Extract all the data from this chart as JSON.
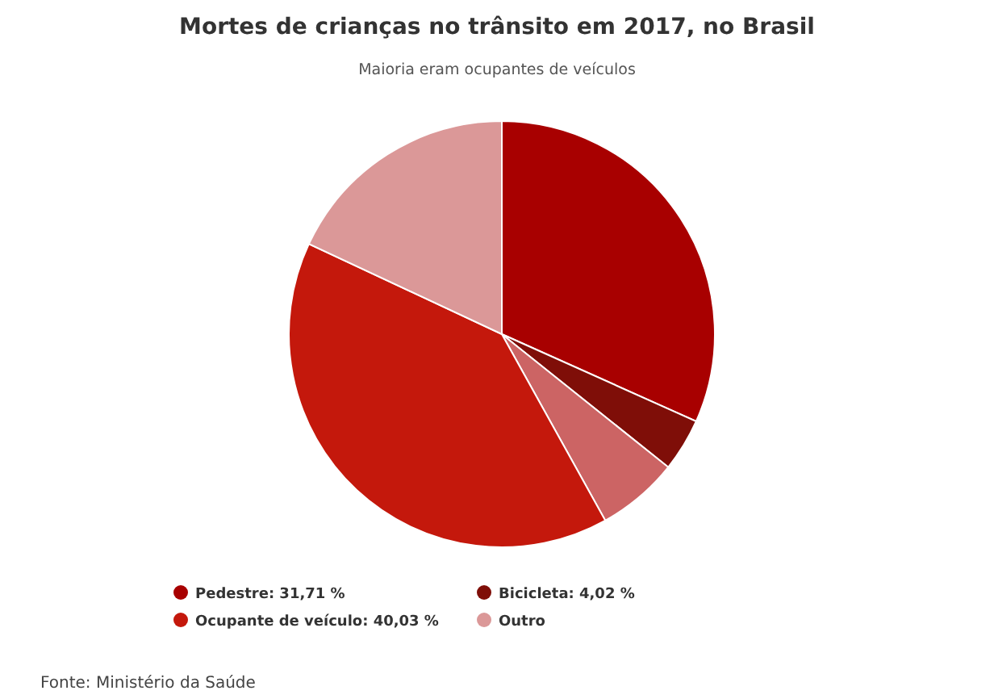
{
  "chart_data": {
    "type": "pie",
    "title": "Mortes de crianças no trânsito em 2017, no Brasil",
    "subtitle": "Maioria eram ocupantes de veículos",
    "categories": [
      "Pedestre",
      "Bicicleta",
      null,
      "Ocupante de veículo",
      "Outro"
    ],
    "values": [
      31.71,
      4.02,
      6.2,
      40.03,
      18.04
    ],
    "value_labels": [
      "31,71 %",
      "4,02 %",
      null,
      "40,03 %",
      null
    ],
    "colors": [
      "#a80000",
      "#7f0e08",
      "#cc6464",
      "#c4180c",
      "#db9898"
    ],
    "legend": "bottom",
    "annotations": [
      "Fonte: Ministério da Saúde"
    ]
  }
}
